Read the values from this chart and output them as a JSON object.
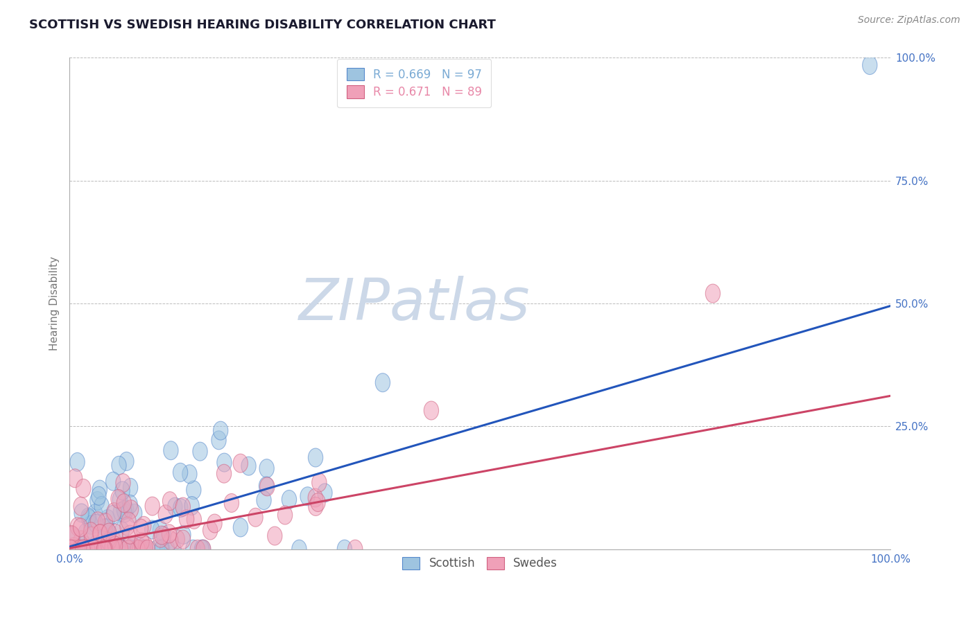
{
  "title": "SCOTTISH VS SWEDISH HEARING DISABILITY CORRELATION CHART",
  "source": "Source: ZipAtlas.com",
  "ylabel": "Hearing Disability",
  "legend_labels": [
    "Scottish",
    "Swedes"
  ],
  "legend_entry_blue": "R = 0.669   N = 97",
  "legend_entry_pink": "R = 0.671   N = 89",
  "blue_face_color": "#9ec4e0",
  "pink_face_color": "#f0a0b8",
  "blue_edge_color": "#5588cc",
  "pink_edge_color": "#d06080",
  "blue_line_color": "#2255bb",
  "pink_line_color": "#cc4466",
  "watermark_text": "ZIPatlas",
  "R_scottish": 0.669,
  "N_scottish": 97,
  "R_swedes": 0.671,
  "N_swedes": 89,
  "xlim": [
    0,
    1
  ],
  "ylim": [
    0,
    1
  ],
  "background_color": "#ffffff",
  "title_color": "#1a1a2e",
  "tick_label_color": "#4472c4",
  "grid_color": "#bbbbbb",
  "title_fontsize": 13,
  "axis_label_fontsize": 11,
  "tick_fontsize": 11,
  "source_fontsize": 10,
  "watermark_color": "#ccd8e8",
  "watermark_fontsize": 60,
  "legend_text_blue": "#7aaad4",
  "legend_text_pink": "#e888a8",
  "legend_N_color_blue": "#dd3333",
  "legend_N_color_pink": "#dd3333",
  "blue_line_end_y": 0.5,
  "pink_line_end_y": 0.32
}
